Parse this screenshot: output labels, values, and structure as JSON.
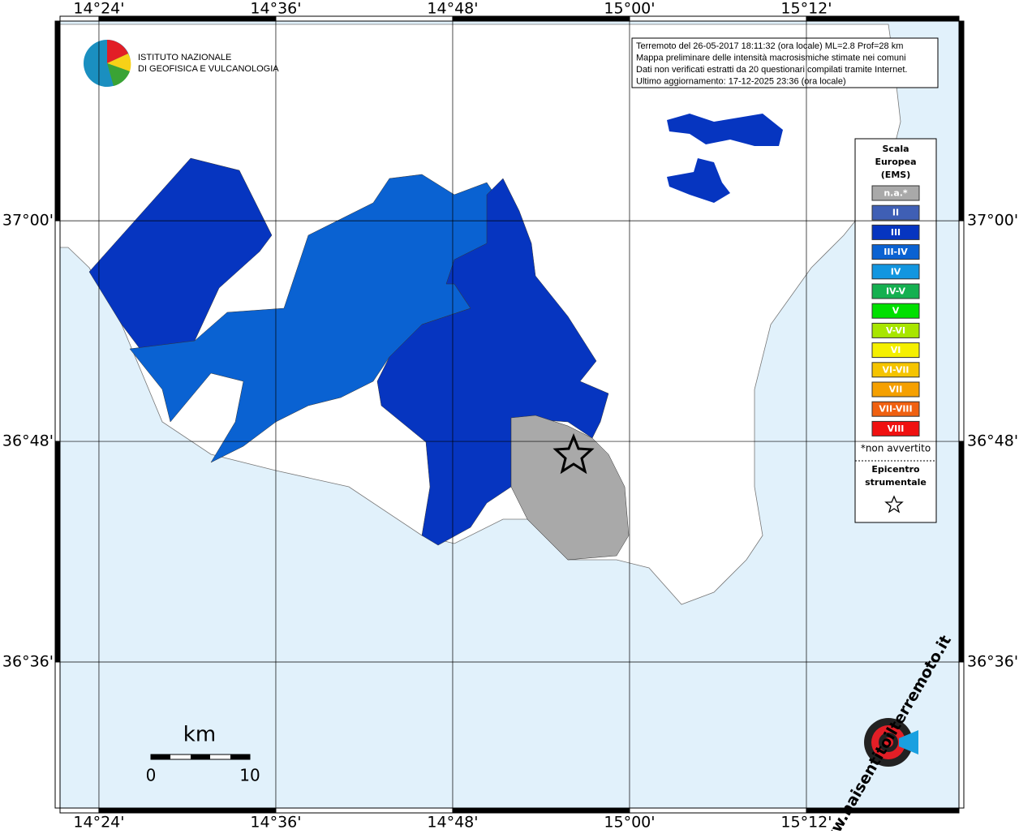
{
  "map": {
    "lonlim": [
      14.356,
      15.3725
    ],
    "latlim": [
      37.181,
      36.4676
    ],
    "lon_ticks": [
      {
        "value": 14.4,
        "label": "14°24'"
      },
      {
        "value": 14.6,
        "label": "14°36'"
      },
      {
        "value": 14.8,
        "label": "14°48'"
      },
      {
        "value": 15.0,
        "label": "15°00'"
      },
      {
        "value": 15.2,
        "label": "15°12'"
      }
    ],
    "lat_ticks": [
      {
        "value": 37.0,
        "label": "37°00'"
      },
      {
        "value": 36.8,
        "label": "36°48'"
      },
      {
        "value": 36.6,
        "label": "36°36'"
      }
    ],
    "info": [
      "Terremoto del 26-05-2017 18:11:32 (ora locale) ML=2.8 Prof=28 km",
      "Mappa preliminare delle intensità macrosismiche stimate nei comuni",
      "Dati non verificati estratti da 20 questionari compilati tramite Internet.",
      "Ultimo aggiornamento: 17-12-2025 23:36 (ora locale)"
    ],
    "logo": [
      "ISTITUTO NAZIONALE",
      "DI GEOFISICA E VULCANOLOGIA"
    ],
    "legend": {
      "title": [
        "Scala",
        "Europea",
        "(EMS)"
      ],
      "items": [
        {
          "label": "n.a.*",
          "color": "#a9a9a9"
        },
        {
          "label": "II",
          "color": "#3f5fb5"
        },
        {
          "label": "III",
          "color": "#0635c0"
        },
        {
          "label": "III-IV",
          "color": "#0a62d2"
        },
        {
          "label": "IV",
          "color": "#1296e0"
        },
        {
          "label": "IV-V",
          "color": "#14b050"
        },
        {
          "label": "V",
          "color": "#00e000"
        },
        {
          "label": "V-VI",
          "color": "#a8e600"
        },
        {
          "label": "VI",
          "color": "#f5f000"
        },
        {
          "label": "VI-VII",
          "color": "#f5c400"
        },
        {
          "label": "VII",
          "color": "#f5a000"
        },
        {
          "label": "VII-VIII",
          "color": "#f06010"
        },
        {
          "label": "VIII",
          "color": "#f01010"
        }
      ],
      "note": "*non avvertito",
      "epicenter": [
        "Epicentro",
        "strumentale"
      ]
    },
    "scale": {
      "unit": "km",
      "start": "0",
      "end": "10"
    },
    "site": "www.haisentitoilterremoto.it"
  }
}
